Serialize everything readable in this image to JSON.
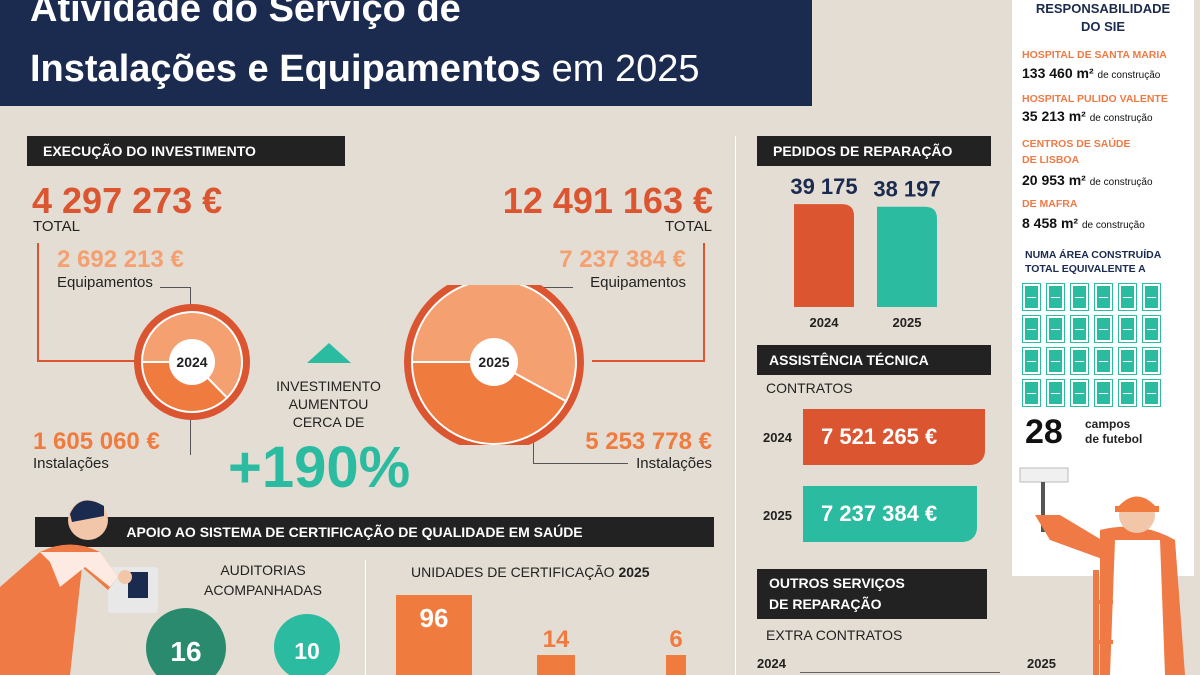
{
  "title": {
    "line1": "Atividade do Serviço de",
    "line2_bold": "Instalações e Equipamentos",
    "line2_year": "em 2025"
  },
  "investment": {
    "header": "EXECUÇÃO DO INVESTIMENTO",
    "y2024": {
      "total": "4 297 273 €",
      "total_label": "TOTAL",
      "equip": "2 692 213 €",
      "equip_label": "Equipamentos",
      "inst": "1 605 060 €",
      "inst_label": "Instalações",
      "year": "2024"
    },
    "y2025": {
      "total": "12 491 163 €",
      "total_label": "TOTAL",
      "equip": "7 237 384 €",
      "equip_label": "Equipamentos",
      "inst": "5 253 778 €",
      "inst_label": "Instalações",
      "year": "2025"
    },
    "increase_text": [
      "INVESTIMENTO",
      "AUMENTOU",
      "CERCA DE"
    ],
    "increase_value": "+190%"
  },
  "repairs": {
    "header": "PEDIDOS DE REPARAÇÃO"
  },
  "technical": {
    "header": "ASSISTÊNCIA TÉCNICA",
    "sub": "CONTRATOS",
    "rows": [
      {
        "year": "2024",
        "value": "7 521 265 €"
      },
      {
        "year": "2025",
        "value": "7 237 384 €"
      }
    ]
  },
  "other": {
    "header_l1": "OUTROS SERVIÇOS",
    "header_l2": "DE REPARAÇÃO",
    "sub": "EXTRA CONTRATOS",
    "y1": "2024",
    "y2": "2025"
  },
  "certification": {
    "header": "APOIO AO SISTEMA DE CERTIFICAÇÃO DE QUALIDADE EM SAÚDE",
    "audits_label_l1": "AUDITORIAS",
    "audits_label_l2": "ACOMPANHADAS",
    "audits": [
      "16",
      "10"
    ],
    "units_label": "UNIDADES DE CERTIFICAÇÃO",
    "units_year": "2025"
  },
  "responsibility": {
    "head_l1": "RESPONSABILIDADE",
    "head_l2": "DO SIE",
    "sites": [
      {
        "name": [
          "HOSPITAL DE SANTA MARIA"
        ],
        "value": "133 460",
        "unit": "m²",
        "suffix": "de construção"
      },
      {
        "name": [
          "HOSPITAL PULIDO VALENTE"
        ],
        "value": "35 213",
        "unit": "m²",
        "suffix": "de construção"
      },
      {
        "name": [
          "CENTROS DE SAÚDE",
          "DE LISBOA"
        ],
        "value": "20 953",
        "unit": "m²",
        "suffix": "de construção"
      },
      {
        "name": [
          "DE MAFRA"
        ],
        "value": "8 458",
        "unit": "m²",
        "suffix": "de construção"
      }
    ],
    "area_text_l1": "NUMA ÁREA CONSTRUÍDA",
    "area_text_l2": "TOTAL EQUIVALENTE A",
    "fields_count": "28",
    "fields_label_l1": "campos",
    "fields_label_l2": "de futebol"
  },
  "colors": {
    "navy": "#1b2a4f",
    "orange": "#db5531",
    "light_orange": "#f4a071",
    "mid_orange": "#f07b3f",
    "teal": "#2bbba0",
    "dark_teal": "#2a8a6e",
    "bg": "#e4ddd3"
  },
  "chart_data": [
    {
      "type": "pie",
      "title": "2024",
      "categories": [
        "Equipamentos",
        "Instalações"
      ],
      "values": [
        2692213,
        1605060
      ],
      "total": 4297273
    },
    {
      "type": "pie",
      "title": "2025",
      "categories": [
        "Equipamentos",
        "Instalações"
      ],
      "values": [
        7237384,
        5253778
      ],
      "total": 12491163
    },
    {
      "type": "bar",
      "title": "PEDIDOS DE REPARAÇÃO",
      "categories": [
        "2024",
        "2025"
      ],
      "values": [
        39175,
        38197
      ],
      "labels": [
        "39 175",
        "38 197"
      ],
      "colors": [
        "#db5531",
        "#2bbba0"
      ]
    },
    {
      "type": "bar",
      "title": "UNIDADES DE CERTIFICAÇÃO 2025",
      "categories": [
        "a",
        "b",
        "c"
      ],
      "values": [
        96,
        14,
        6
      ],
      "labels": [
        "96",
        "14",
        "6"
      ]
    }
  ]
}
